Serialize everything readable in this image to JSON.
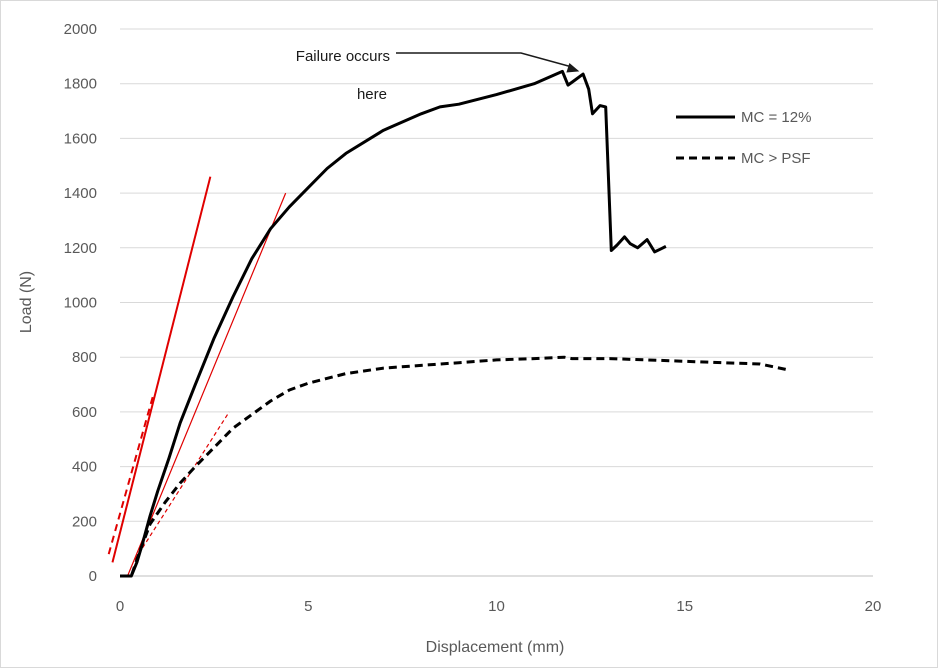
{
  "chart_data": {
    "type": "line",
    "title": "",
    "xlabel": "Displacement (mm)",
    "ylabel": "Load (N)",
    "xlim": [
      0,
      20
    ],
    "ylim": [
      0,
      2000
    ],
    "x_ticks": [
      0,
      5,
      10,
      15,
      20
    ],
    "x_tick_labels": [
      "0",
      "5",
      "10",
      "15",
      "20"
    ],
    "y_ticks": [
      0,
      200,
      400,
      600,
      800,
      1000,
      1200,
      1400,
      1600,
      1800,
      2000
    ],
    "y_tick_labels": [
      "0",
      "200",
      "400",
      "600",
      "800",
      "1000",
      "1200",
      "1400",
      "1600",
      "1800",
      "2000"
    ],
    "grid": "horizontal",
    "legend_position": "right",
    "series": [
      {
        "name": "MC = 12%",
        "style": "solid",
        "color": "#000000",
        "points": [
          [
            0,
            0
          ],
          [
            0.3,
            0
          ],
          [
            0.45,
            50
          ],
          [
            0.6,
            120
          ],
          [
            0.8,
            220
          ],
          [
            1.0,
            310
          ],
          [
            1.3,
            430
          ],
          [
            1.6,
            560
          ],
          [
            2.0,
            700
          ],
          [
            2.5,
            870
          ],
          [
            3.0,
            1020
          ],
          [
            3.5,
            1160
          ],
          [
            4.0,
            1270
          ],
          [
            4.5,
            1350
          ],
          [
            5.0,
            1420
          ],
          [
            5.5,
            1490
          ],
          [
            6.0,
            1545
          ],
          [
            7.0,
            1630
          ],
          [
            8.0,
            1690
          ],
          [
            8.5,
            1715
          ],
          [
            9.0,
            1725
          ],
          [
            10.0,
            1760
          ],
          [
            11.0,
            1800
          ],
          [
            11.5,
            1830
          ],
          [
            11.75,
            1845
          ],
          [
            11.9,
            1795
          ],
          [
            12.05,
            1810
          ],
          [
            12.3,
            1835
          ],
          [
            12.45,
            1780
          ],
          [
            12.55,
            1690
          ],
          [
            12.75,
            1720
          ],
          [
            12.9,
            1715
          ],
          [
            13.05,
            1190
          ],
          [
            13.2,
            1210
          ],
          [
            13.4,
            1240
          ],
          [
            13.55,
            1215
          ],
          [
            13.75,
            1200
          ],
          [
            14.0,
            1230
          ],
          [
            14.2,
            1185
          ],
          [
            14.35,
            1195
          ],
          [
            14.5,
            1205
          ]
        ]
      },
      {
        "name": "MC > PSF",
        "style": "dashed",
        "color": "#000000",
        "points": [
          [
            0,
            0
          ],
          [
            0.3,
            0
          ],
          [
            0.5,
            80
          ],
          [
            0.8,
            190
          ],
          [
            1.2,
            270
          ],
          [
            1.6,
            340
          ],
          [
            2.0,
            400
          ],
          [
            2.5,
            470
          ],
          [
            3.0,
            540
          ],
          [
            3.5,
            590
          ],
          [
            4.0,
            640
          ],
          [
            4.5,
            680
          ],
          [
            5.0,
            705
          ],
          [
            6.0,
            740
          ],
          [
            7.0,
            760
          ],
          [
            8.0,
            770
          ],
          [
            9.0,
            780
          ],
          [
            10.0,
            790
          ],
          [
            11.0,
            795
          ],
          [
            11.8,
            800
          ],
          [
            12.0,
            795
          ],
          [
            13.0,
            795
          ],
          [
            14.0,
            790
          ],
          [
            15.0,
            785
          ],
          [
            16.0,
            780
          ],
          [
            17.0,
            775
          ],
          [
            17.7,
            755
          ]
        ]
      }
    ],
    "reference_lines": [
      {
        "style": "solid",
        "color": "#e00000",
        "from": [
          -0.2,
          50
        ],
        "to": [
          2.4,
          1460
        ]
      },
      {
        "style": "dashed",
        "color": "#e00000",
        "from": [
          -0.3,
          80
        ],
        "to": [
          0.9,
          670
        ]
      },
      {
        "style": "thin",
        "color": "#e00000",
        "from": [
          0.2,
          0
        ],
        "to": [
          4.4,
          1400
        ]
      },
      {
        "style": "thin-dashed",
        "color": "#e00000",
        "from": [
          0.4,
          60
        ],
        "to": [
          2.9,
          600
        ]
      }
    ],
    "annotations": [
      {
        "text_lines": [
          "Failure occurs",
          "here"
        ],
        "arrow_to": [
          12.2,
          1845
        ]
      }
    ]
  }
}
